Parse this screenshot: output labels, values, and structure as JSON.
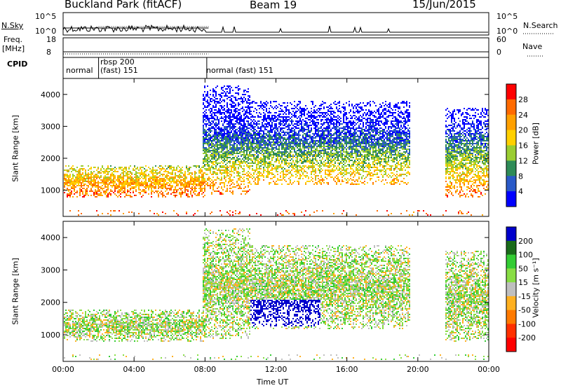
{
  "header": {
    "station": "Buckland Park (fitACF)",
    "beam": "Beam 19",
    "date": "15/Jun/2015"
  },
  "strips": {
    "nsky": {
      "label": "N.Sky",
      "left_ticks": [
        "10^5",
        "10^0"
      ],
      "right_ticks": [
        "10^5",
        "10^0"
      ],
      "right_label": "N.Search"
    },
    "freq": {
      "label_top": "Freq.",
      "label_bottom": "[MHz]",
      "left_ticks": [
        "18",
        "8"
      ],
      "right_ticks": [
        "60",
        "0"
      ],
      "right_label": "Nave"
    },
    "cpid": {
      "label": "CPID",
      "segments": [
        "normal",
        "rbsp 200",
        "(fast) 151",
        "normal (fast) 151"
      ]
    }
  },
  "power_panel": {
    "ylabel": "Slant Range [km]",
    "cbar_label": "Power [dB]"
  },
  "velocity_panel": {
    "ylabel": "Slant Range [km]",
    "cbar_label": "Velocity [m s⁻¹]"
  },
  "xlabel": "Time UT",
  "chart_data": {
    "type": "heatmap",
    "title": "Buckland Park (fitACF) Beam 19 15/Jun/2015",
    "xlabel": "Time UT",
    "x_ticks": [
      "00:00",
      "04:00",
      "08:00",
      "12:00",
      "16:00",
      "20:00",
      "00:00"
    ],
    "x_range_hours": [
      0,
      24
    ],
    "panels": [
      {
        "name": "power",
        "ylabel": "Slant Range [km]",
        "ylim": [
          180,
          4500
        ],
        "y_ticks": [
          1000,
          2000,
          3000,
          4000
        ],
        "colorbar": {
          "label": "Power [dB]",
          "ticks": [
            "28",
            "24",
            "20",
            "16",
            "12",
            "8",
            "4"
          ]
        },
        "colors": [
          "#ff0000",
          "#ff6a00",
          "#ffa000",
          "#ffd000",
          "#9acd32",
          "#2e8b57",
          "#2a5ac8",
          "#0000ff"
        ]
      },
      {
        "name": "velocity",
        "ylabel": "Slant Range [km]",
        "ylim": [
          180,
          4500
        ],
        "y_ticks": [
          1000,
          2000,
          3000,
          4000
        ],
        "colorbar": {
          "label": "Velocity [m s⁻¹]",
          "ticks": [
            "200",
            "100",
            "50",
            "15",
            "-15",
            "-50",
            "-100",
            "-200"
          ]
        },
        "colors": [
          "#0000cc",
          "#1a6b1a",
          "#33cc33",
          "#88dd44",
          "#bfbfbf",
          "#ffb020",
          "#ff7a00",
          "#ff3000",
          "#ff0000"
        ]
      }
    ],
    "echo_regions": [
      {
        "t_start": 0.0,
        "t_end": 8.0,
        "r_low": 800,
        "r_high": 1800
      },
      {
        "t_start": 7.8,
        "t_end": 10.5,
        "r_low": 900,
        "r_high": 4300
      },
      {
        "t_start": 10.0,
        "t_end": 19.5,
        "r_low": 1200,
        "r_high": 3800
      },
      {
        "t_start": 21.5,
        "t_end": 24.0,
        "r_low": 800,
        "r_high": 3600
      }
    ]
  }
}
